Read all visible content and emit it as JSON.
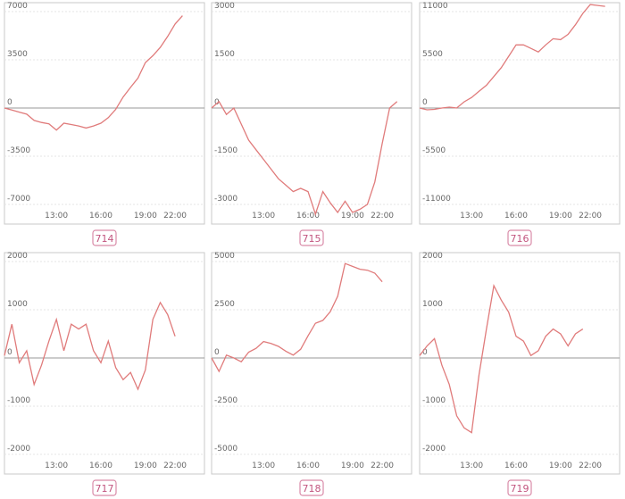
{
  "chart_data": [
    {
      "type": "line",
      "title": "714",
      "color": "#e07b7b",
      "categories": [
        null,
        null,
        null,
        null,
        null,
        null,
        null,
        "13:00",
        null,
        null,
        null,
        null,
        null,
        "16:00",
        null,
        null,
        null,
        null,
        null,
        "19:00",
        null,
        null,
        null,
        "22:00",
        null,
        null,
        null
      ],
      "values": [
        0,
        -150,
        -300,
        -450,
        -900,
        -1050,
        -1150,
        -1600,
        -1100,
        -1200,
        -1300,
        -1450,
        -1300,
        -1100,
        -700,
        -100,
        800,
        1500,
        2170,
        3300,
        3800,
        4400,
        5200,
        6100,
        6700,
        null,
        null
      ],
      "ylim": [
        -7000,
        7000
      ],
      "yticks": [
        -7000,
        -3500,
        0,
        3500,
        7000
      ],
      "grid": true
    },
    {
      "type": "line",
      "title": "715",
      "color": "#e07b7b",
      "categories": [
        null,
        null,
        null,
        null,
        null,
        null,
        null,
        "13:00",
        null,
        null,
        null,
        null,
        null,
        "16:00",
        null,
        null,
        null,
        null,
        null,
        "19:00",
        null,
        null,
        null,
        "22:00",
        null,
        null,
        null
      ],
      "values": [
        0,
        200,
        -200,
        0,
        -500,
        -1000,
        -1300,
        -1600,
        -1900,
        -2200,
        -2400,
        -2600,
        -2500,
        -2600,
        -3300,
        -2600,
        -2950,
        -3250,
        -2900,
        -3250,
        -3150,
        -3000,
        -2300,
        -1100,
        0,
        200,
        null
      ],
      "ylim": [
        -3000,
        3000
      ],
      "yticks": [
        -3000,
        -1500,
        0,
        1500,
        3000
      ],
      "grid": true
    },
    {
      "type": "line",
      "title": "716",
      "color": "#e07b7b",
      "categories": [
        null,
        null,
        null,
        null,
        null,
        null,
        null,
        "13:00",
        null,
        null,
        null,
        null,
        null,
        "16:00",
        null,
        null,
        null,
        null,
        null,
        "19:00",
        null,
        null,
        null,
        "22:00",
        null,
        null,
        null
      ],
      "values": [
        0,
        -200,
        -150,
        0,
        100,
        0,
        700,
        1200,
        1900,
        2600,
        3600,
        4600,
        5900,
        7200,
        7200,
        6800,
        6400,
        7200,
        7900,
        7800,
        8400,
        9500,
        10800,
        11800,
        11700,
        11600,
        null
      ],
      "ylim": [
        -11000,
        11000
      ],
      "yticks": [
        -11000,
        -5500,
        0,
        5500,
        11000
      ],
      "grid": true
    },
    {
      "type": "line",
      "title": "717",
      "color": "#e07b7b",
      "categories": [
        null,
        null,
        null,
        null,
        null,
        null,
        null,
        "13:00",
        null,
        null,
        null,
        null,
        null,
        "16:00",
        null,
        null,
        null,
        null,
        null,
        "19:00",
        null,
        null,
        null,
        "22:00",
        null,
        null,
        null
      ],
      "values": [
        50,
        700,
        -100,
        150,
        -550,
        -150,
        350,
        800,
        150,
        700,
        600,
        700,
        150,
        -100,
        350,
        -200,
        -450,
        -300,
        -650,
        -250,
        800,
        1150,
        900,
        450,
        null,
        null,
        null
      ],
      "ylim": [
        -2000,
        2000
      ],
      "yticks": [
        -2000,
        -1000,
        0,
        1000,
        2000
      ],
      "grid": true
    },
    {
      "type": "line",
      "title": "718",
      "color": "#e07b7b",
      "categories": [
        null,
        null,
        null,
        null,
        null,
        null,
        null,
        "13:00",
        null,
        null,
        null,
        null,
        null,
        "16:00",
        null,
        null,
        null,
        null,
        null,
        "19:00",
        null,
        null,
        null,
        "22:00",
        null,
        null,
        null
      ],
      "values": [
        0,
        -700,
        150,
        0,
        -200,
        300,
        500,
        850,
        750,
        600,
        350,
        150,
        450,
        1150,
        1800,
        1950,
        2400,
        3200,
        4900,
        4750,
        4600,
        4550,
        4400,
        3950,
        null,
        null,
        null
      ],
      "ylim": [
        -5000,
        5000
      ],
      "yticks": [
        -5000,
        -2500,
        0,
        2500,
        5000
      ],
      "grid": true
    },
    {
      "type": "line",
      "title": "719",
      "color": "#e07b7b",
      "categories": [
        null,
        null,
        null,
        null,
        null,
        null,
        null,
        "13:00",
        null,
        null,
        null,
        null,
        null,
        "16:00",
        null,
        null,
        null,
        null,
        null,
        "19:00",
        null,
        null,
        null,
        "22:00",
        null,
        null,
        null
      ],
      "values": [
        50,
        250,
        400,
        -150,
        -550,
        -1200,
        -1450,
        -1550,
        -350,
        600,
        1500,
        1200,
        950,
        450,
        350,
        50,
        150,
        450,
        600,
        500,
        250,
        500,
        600,
        null,
        null,
        null,
        null
      ],
      "ylim": [
        -2000,
        2000
      ],
      "yticks": [
        -2000,
        -1000,
        0,
        1000,
        2000
      ],
      "grid": true
    }
  ]
}
